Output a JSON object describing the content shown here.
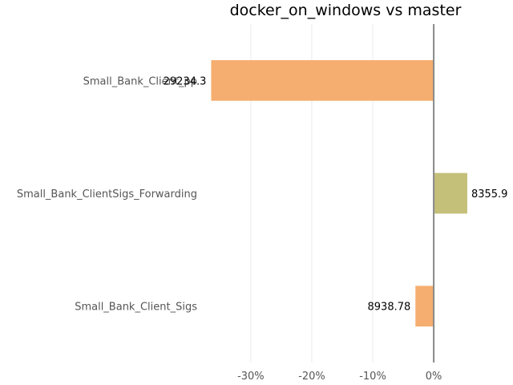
{
  "chart_data": {
    "type": "bar",
    "orientation": "horizontal",
    "title": "docker_on_windows vs master",
    "xlabel": "",
    "ylabel": "",
    "categories": [
      "Small_Bank_Client_pp",
      "Small_Bank_ClientSigs_Forwarding",
      "Small_Bank_Client_Sigs"
    ],
    "category_labels": [
      "Small_Bank_Client_pp",
      "Small_Bank_ClientSigs_Forwarding",
      "Small_Bank_Client_Sigs"
    ],
    "values_percent": [
      -36.5,
      5.5,
      -3.0
    ],
    "data_labels": [
      "29234.3",
      "8355.9",
      "8938.78"
    ],
    "colors": [
      "#f5ae6f",
      "#c4c07a",
      "#f5ae6f"
    ],
    "xlim": [
      -38,
      13
    ],
    "x_ticks": [
      -30,
      -20,
      -10,
      0
    ],
    "x_tick_labels": [
      "-30%",
      "-20%",
      "-10%",
      "0%"
    ],
    "grid": true,
    "legend": "none"
  }
}
